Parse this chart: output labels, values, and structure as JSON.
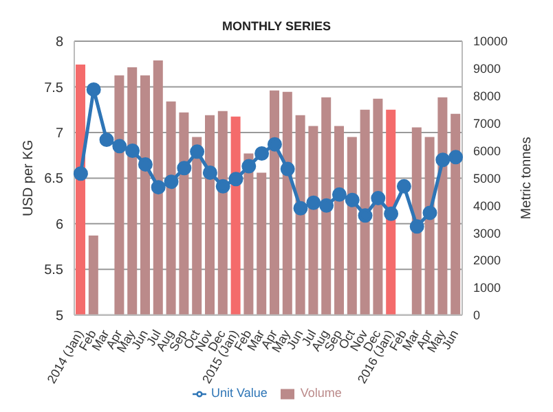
{
  "chart_data": {
    "type": "bar",
    "title": "MONTHLY SERIES",
    "ylabel": "USD per KG",
    "y2label": "Metric tonnes",
    "categories": [
      "2014 (Jan)",
      "Feb",
      "Mar",
      "Apr",
      "May",
      "Jun",
      "Jul",
      "Aug",
      "Sep",
      "Oct",
      "Nov",
      "Dec",
      "2015 (Jan)",
      "Feb",
      "Mar",
      "Apr",
      "May",
      "Jun",
      "Jul",
      "Aug",
      "Sep",
      "Oct",
      "Nov",
      "Dec",
      "2016 (Jan)",
      "Feb",
      "Mar",
      "Apr",
      "May",
      "Jun"
    ],
    "series": [
      {
        "name": "Volume",
        "axis": "y2",
        "color": "#bb8a8a",
        "colors": [
          "#f46b6b",
          "#bb8a8a",
          "#bb8a8a",
          "#bb8a8a",
          "#bb8a8a",
          "#bb8a8a",
          "#bb8a8a",
          "#bb8a8a",
          "#bb8a8a",
          "#bb8a8a",
          "#bb8a8a",
          "#bb8a8a",
          "#f46b6b",
          "#bb8a8a",
          "#bb8a8a",
          "#bb8a8a",
          "#bb8a8a",
          "#bb8a8a",
          "#bb8a8a",
          "#bb8a8a",
          "#bb8a8a",
          "#bb8a8a",
          "#bb8a8a",
          "#bb8a8a",
          "#f46b6b",
          "#bb8a8a",
          "#bb8a8a",
          "#bb8a8a",
          "#bb8a8a",
          "#bb8a8a"
        ],
        "values": [
          9150,
          2900,
          null,
          8750,
          9050,
          8750,
          9300,
          7800,
          7400,
          6500,
          7300,
          7450,
          7250,
          5900,
          5200,
          8200,
          8150,
          7300,
          6900,
          7950,
          6900,
          6500,
          7500,
          7900,
          7500,
          null,
          6850,
          6500,
          7950,
          7350
        ]
      },
      {
        "name": "Unit Value",
        "type": "line",
        "axis": "y",
        "color": "#2e75b6",
        "values": [
          6.55,
          7.47,
          6.92,
          6.85,
          6.8,
          6.65,
          6.4,
          6.46,
          6.61,
          6.79,
          6.56,
          6.41,
          6.49,
          6.63,
          6.77,
          6.87,
          6.6,
          6.17,
          6.23,
          6.2,
          6.32,
          6.26,
          6.09,
          6.28,
          6.11,
          6.41,
          5.97,
          6.12,
          6.7,
          6.73
        ]
      }
    ],
    "ylim": [
      5,
      8
    ],
    "yticks": [
      5,
      5.5,
      6,
      6.5,
      7,
      7.5,
      8
    ],
    "y2lim": [
      0,
      10000
    ],
    "y2ticks": [
      0,
      1000,
      2000,
      3000,
      4000,
      5000,
      6000,
      7000,
      8000,
      9000,
      10000
    ],
    "grid": "y",
    "legend": "bottom",
    "marker": "circle",
    "line_style": "solid"
  }
}
